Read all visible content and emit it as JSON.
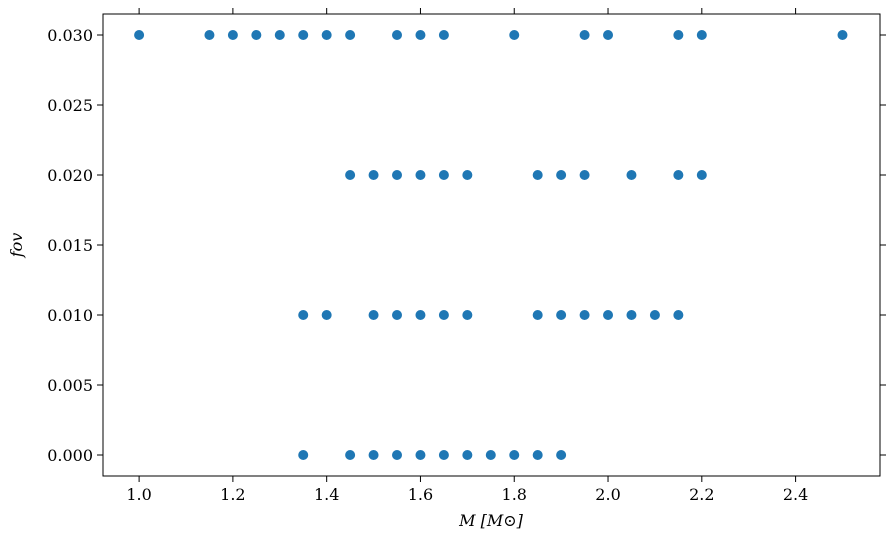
{
  "chart_data": {
    "type": "scatter",
    "x_label": "M [M⊙]",
    "y_label": "fov",
    "xlim": [
      0.923,
      2.58
    ],
    "ylim": [
      -0.0015,
      0.0315
    ],
    "xticks": [
      {
        "value": 1,
        "label": "1.0"
      },
      1.2,
      1.4,
      1.6,
      1.8,
      {
        "value": 2,
        "label": "2.0"
      },
      2.2,
      2.4
    ],
    "yticks": [
      {
        "value": 0,
        "label": "0.000"
      },
      0.005,
      {
        "value": 0.01,
        "label": "0.010"
      },
      0.015,
      {
        "value": 0.02,
        "label": "0.020"
      },
      0.025,
      {
        "value": 0.03,
        "label": "0.030"
      }
    ],
    "series": [
      {
        "color": "#1f77b4",
        "x": [
          1.0,
          1.15,
          1.2,
          1.25,
          1.3,
          1.35,
          1.4,
          1.45,
          1.55,
          1.6,
          1.65,
          1.8,
          1.95,
          2.0,
          2.15,
          2.2,
          2.5,
          1.45,
          1.5,
          1.55,
          1.6,
          1.65,
          1.7,
          1.85,
          1.9,
          1.95,
          2.05,
          2.15,
          2.2,
          1.35,
          1.4,
          1.5,
          1.55,
          1.6,
          1.65,
          1.7,
          1.85,
          1.9,
          1.95,
          2.0,
          2.05,
          2.1,
          2.15,
          1.35,
          1.45,
          1.5,
          1.55,
          1.6,
          1.65,
          1.7,
          1.75,
          1.8,
          1.85,
          1.9
        ],
        "values": [
          0.03,
          0.03,
          0.03,
          0.03,
          0.03,
          0.03,
          0.03,
          0.03,
          0.03,
          0.03,
          0.03,
          0.03,
          0.03,
          0.03,
          0.03,
          0.03,
          0.03,
          0.02,
          0.02,
          0.02,
          0.02,
          0.02,
          0.02,
          0.02,
          0.02,
          0.02,
          0.02,
          0.02,
          0.02,
          0.01,
          0.01,
          0.01,
          0.01,
          0.01,
          0.01,
          0.01,
          0.01,
          0.01,
          0.01,
          0.01,
          0.01,
          0.01,
          0.01,
          0,
          0,
          0,
          0,
          0,
          0,
          0,
          0,
          0,
          0,
          0
        ]
      }
    ]
  }
}
